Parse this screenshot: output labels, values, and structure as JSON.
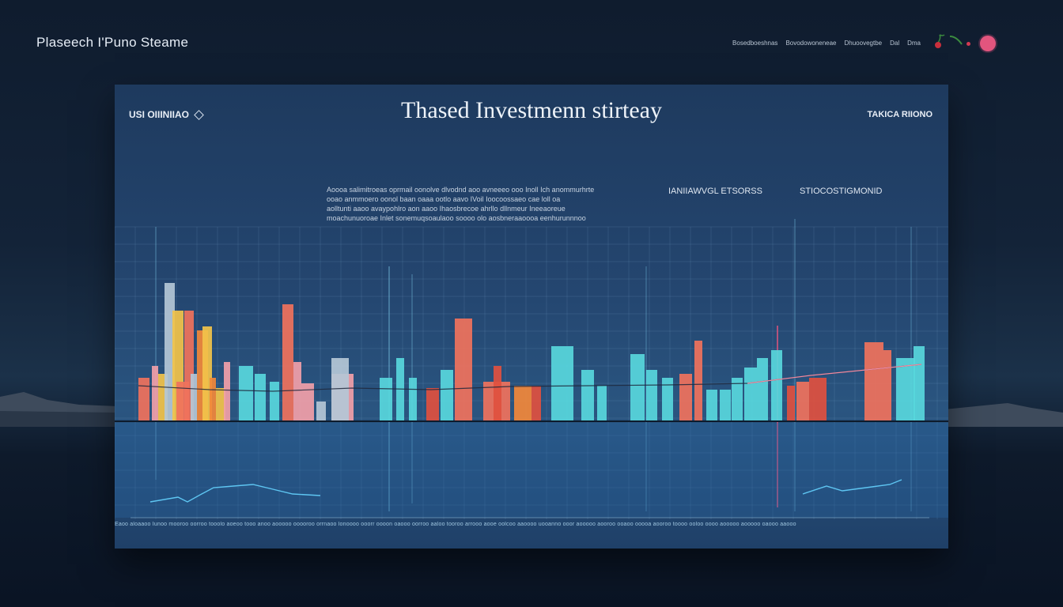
{
  "header": {
    "brand": "Plaseech I'Puno Steame",
    "nav": [
      "Bosedboeshnas",
      "Bovodowoneneae",
      "Dhuoovegtbe",
      "Dal",
      "Dma"
    ]
  },
  "panel": {
    "left_label": "USI OIIINIIAO",
    "title": "Thased Investmenn stirteay",
    "right_label": "TAKICA RIIONO",
    "desc_lines": [
      "Aoooa salimitroeas oprmail oonolve dlvodnd aoo avneeeo ooo Inoll Ich anommurhrte",
      "ooao anmmoero oonol baan oaaa ootlo aavo IVoil Ioocoossaeo cae loll oa",
      "aolltunti aaoo avaypohlro aon aaoo Ihaosbrecoe ahrllo dllnmeur Ineeaoreue",
      "moachunuoroae Inlet sonemuqsoaulaoo soooo olo aosbneraaoooa eenhurunnnoo"
    ],
    "label_mid": "IANIIAWVGL ETSORSS",
    "label_right": "STIOCOSTIGMONID",
    "caption": "Eaoo aloaaoo Iunoo mooroo oorroo tooolo aoeoo tooo anoo aooooo ooooroo orrnaoo lonoooo ooorr oooon oaooo oorroo aaloo tooroo arrooo aooe oolcoo aaoooo uooanno ooor aooooo aooroo ooaoo ooooa aooroo toooo ooloo oooo aooooo aooooo oaooo aaooo"
  },
  "colors": {
    "coral": "#f0725c",
    "red": "#e0503f",
    "orange": "#f2883a",
    "yellow": "#f2c34a",
    "cyan": "#58d7dc",
    "pink": "#f2a0a8",
    "gray": "#b4c7d6",
    "lightblue": "#7fb8e0",
    "accent_pink": "#e2557e"
  },
  "chart_data": {
    "type": "bar",
    "baseline_y": 0,
    "ylim": [
      0,
      200
    ],
    "bars": [
      {
        "x": 30,
        "w": 14,
        "v": 55,
        "c": "coral"
      },
      {
        "x": 47,
        "w": 8,
        "v": 70,
        "c": "pink"
      },
      {
        "x": 55,
        "w": 12,
        "v": 60,
        "c": "yellow"
      },
      {
        "x": 63,
        "w": 13,
        "v": 175,
        "c": "gray"
      },
      {
        "x": 73,
        "w": 14,
        "v": 140,
        "c": "yellow"
      },
      {
        "x": 78,
        "w": 16,
        "v": 50,
        "c": "coral"
      },
      {
        "x": 88,
        "w": 12,
        "v": 140,
        "c": "coral"
      },
      {
        "x": 96,
        "w": 8,
        "v": 60,
        "c": "gray"
      },
      {
        "x": 104,
        "w": 14,
        "v": 115,
        "c": "orange"
      },
      {
        "x": 111,
        "w": 12,
        "v": 120,
        "c": "yellow"
      },
      {
        "x": 120,
        "w": 8,
        "v": 55,
        "c": "orange"
      },
      {
        "x": 128,
        "w": 12,
        "v": 42,
        "c": "yellow"
      },
      {
        "x": 138,
        "w": 8,
        "v": 75,
        "c": "pink"
      },
      {
        "x": 157,
        "w": 18,
        "v": 70,
        "c": "cyan"
      },
      {
        "x": 177,
        "w": 14,
        "v": 60,
        "c": "cyan"
      },
      {
        "x": 196,
        "w": 12,
        "v": 50,
        "c": "cyan"
      },
      {
        "x": 212,
        "w": 14,
        "v": 148,
        "c": "coral"
      },
      {
        "x": 226,
        "w": 10,
        "v": 75,
        "c": "pink"
      },
      {
        "x": 236,
        "w": 16,
        "v": 48,
        "c": "pink"
      },
      {
        "x": 255,
        "w": 12,
        "v": 25,
        "c": "gray"
      },
      {
        "x": 274,
        "w": 28,
        "v": 60,
        "c": "pink"
      },
      {
        "x": 274,
        "w": 22,
        "v": 80,
        "c": "gray"
      },
      {
        "x": 335,
        "w": 16,
        "v": 55,
        "c": "cyan"
      },
      {
        "x": 356,
        "w": 10,
        "v": 80,
        "c": "cyan"
      },
      {
        "x": 372,
        "w": 10,
        "v": 55,
        "c": "cyan"
      },
      {
        "x": 394,
        "w": 16,
        "v": 42,
        "c": "red"
      },
      {
        "x": 412,
        "w": 16,
        "v": 65,
        "c": "cyan"
      },
      {
        "x": 430,
        "w": 22,
        "v": 130,
        "c": "coral"
      },
      {
        "x": 466,
        "w": 34,
        "v": 50,
        "c": "coral"
      },
      {
        "x": 479,
        "w": 10,
        "v": 70,
        "c": "red"
      },
      {
        "x": 505,
        "w": 22,
        "v": 45,
        "c": "orange"
      },
      {
        "x": 527,
        "w": 12,
        "v": 45,
        "c": "red"
      },
      {
        "x": 552,
        "w": 16,
        "v": 95,
        "c": "cyan"
      },
      {
        "x": 568,
        "w": 12,
        "v": 95,
        "c": "cyan"
      },
      {
        "x": 590,
        "w": 16,
        "v": 65,
        "c": "cyan"
      },
      {
        "x": 610,
        "w": 12,
        "v": 45,
        "c": "cyan"
      },
      {
        "x": 652,
        "w": 18,
        "v": 85,
        "c": "cyan"
      },
      {
        "x": 672,
        "w": 14,
        "v": 65,
        "c": "cyan"
      },
      {
        "x": 692,
        "w": 14,
        "v": 55,
        "c": "cyan"
      },
      {
        "x": 714,
        "w": 16,
        "v": 60,
        "c": "coral"
      },
      {
        "x": 733,
        "w": 10,
        "v": 102,
        "c": "coral"
      },
      {
        "x": 748,
        "w": 14,
        "v": 40,
        "c": "cyan"
      },
      {
        "x": 765,
        "w": 14,
        "v": 40,
        "c": "cyan"
      },
      {
        "x": 780,
        "w": 14,
        "v": 55,
        "c": "cyan"
      },
      {
        "x": 796,
        "w": 16,
        "v": 68,
        "c": "cyan"
      },
      {
        "x": 812,
        "w": 14,
        "v": 80,
        "c": "cyan"
      },
      {
        "x": 830,
        "w": 14,
        "v": 90,
        "c": "cyan"
      },
      {
        "x": 850,
        "w": 10,
        "v": 45,
        "c": "red"
      },
      {
        "x": 862,
        "w": 16,
        "v": 50,
        "c": "coral"
      },
      {
        "x": 878,
        "w": 22,
        "v": 55,
        "c": "red"
      },
      {
        "x": 948,
        "w": 24,
        "v": 100,
        "c": "coral"
      },
      {
        "x": 972,
        "w": 10,
        "v": 90,
        "c": "coral"
      },
      {
        "x": 988,
        "w": 24,
        "v": 80,
        "c": "cyan"
      },
      {
        "x": 1010,
        "w": 14,
        "v": 95,
        "c": "cyan"
      }
    ],
    "trend_line": [
      [
        30,
        45
      ],
      [
        120,
        40
      ],
      [
        200,
        38
      ],
      [
        300,
        42
      ],
      [
        400,
        40
      ],
      [
        500,
        44
      ],
      [
        600,
        45
      ],
      [
        700,
        46
      ],
      [
        800,
        48
      ],
      [
        880,
        58
      ],
      [
        960,
        66
      ],
      [
        1020,
        72
      ]
    ],
    "lower_line_left": [
      [
        45,
        12
      ],
      [
        80,
        18
      ],
      [
        92,
        12
      ],
      [
        110,
        22
      ],
      [
        125,
        30
      ],
      [
        150,
        32
      ],
      [
        175,
        34
      ],
      [
        200,
        28
      ],
      [
        225,
        22
      ],
      [
        260,
        20
      ]
    ],
    "lower_line_right": [
      [
        870,
        22
      ],
      [
        900,
        32
      ],
      [
        920,
        26
      ],
      [
        950,
        30
      ],
      [
        980,
        34
      ],
      [
        995,
        40
      ]
    ]
  }
}
